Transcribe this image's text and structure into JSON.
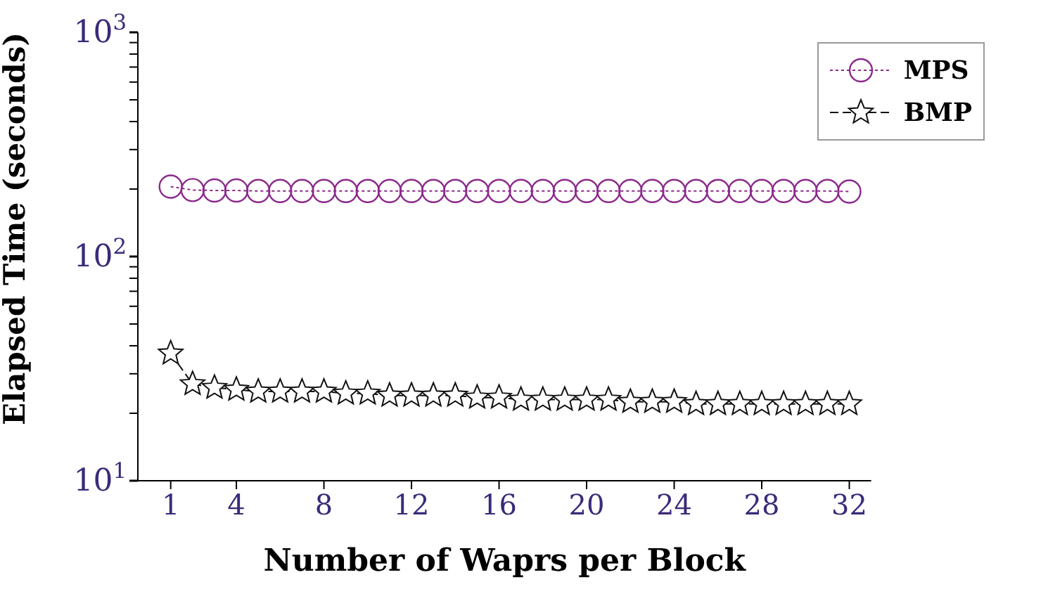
{
  "chart_data": {
    "type": "line",
    "xlabel": "Number of Waprs per Block",
    "ylabel": "Elapsed Time (seconds)",
    "x": [
      1,
      2,
      3,
      4,
      5,
      6,
      7,
      8,
      9,
      10,
      11,
      12,
      13,
      14,
      15,
      16,
      17,
      18,
      19,
      20,
      21,
      22,
      23,
      24,
      25,
      26,
      27,
      28,
      29,
      30,
      31,
      32
    ],
    "series": [
      {
        "name": "MPS",
        "color": "#8b2a8b",
        "marker": "circle",
        "line_style": "dotted",
        "values": [
          205,
          198,
          197,
          197,
          196,
          196,
          196,
          196,
          196,
          196,
          196,
          196,
          196,
          196,
          196,
          196,
          196,
          196,
          196,
          196,
          196,
          196,
          196,
          196,
          196,
          196,
          196,
          196,
          196,
          196,
          196,
          195
        ]
      },
      {
        "name": "BMP",
        "color": "#111111",
        "marker": "star",
        "line_style": "dashed",
        "values": [
          37,
          27,
          26,
          25.5,
          25,
          25,
          25,
          25,
          24.5,
          24.5,
          24,
          24,
          24,
          24,
          23.5,
          23.5,
          23,
          23,
          23,
          23,
          23,
          22.5,
          22.5,
          22.5,
          22,
          22,
          22,
          22,
          22,
          22,
          22,
          22
        ]
      }
    ],
    "log": "y",
    "ylim": [
      10,
      1000
    ],
    "yticks": [
      {
        "value": 10,
        "label": "10$^{1}$"
      },
      {
        "value": 20,
        "label": null
      },
      {
        "value": 30,
        "label": null
      },
      {
        "value": 40,
        "label": null
      },
      {
        "value": 50,
        "label": null
      },
      {
        "value": 60,
        "label": null
      },
      {
        "value": 70,
        "label": null
      },
      {
        "value": 80,
        "label": null
      },
      {
        "value": 90,
        "label": null
      },
      {
        "value": 100,
        "label": "10$^{2}$"
      },
      {
        "value": 200,
        "label": null
      },
      {
        "value": 300,
        "label": null
      },
      {
        "value": 400,
        "label": null
      },
      {
        "value": 500,
        "label": null
      },
      {
        "value": 600,
        "label": null
      },
      {
        "value": 700,
        "label": null
      },
      {
        "value": 800,
        "label": null
      },
      {
        "value": 900,
        "label": null
      },
      {
        "value": 1000,
        "label": "10$^{3}$"
      }
    ],
    "xlim": [
      -0.5,
      33
    ],
    "xticks": [
      1,
      4,
      8,
      12,
      16,
      20,
      24,
      28,
      32
    ],
    "grid": false,
    "legend": "top right"
  }
}
